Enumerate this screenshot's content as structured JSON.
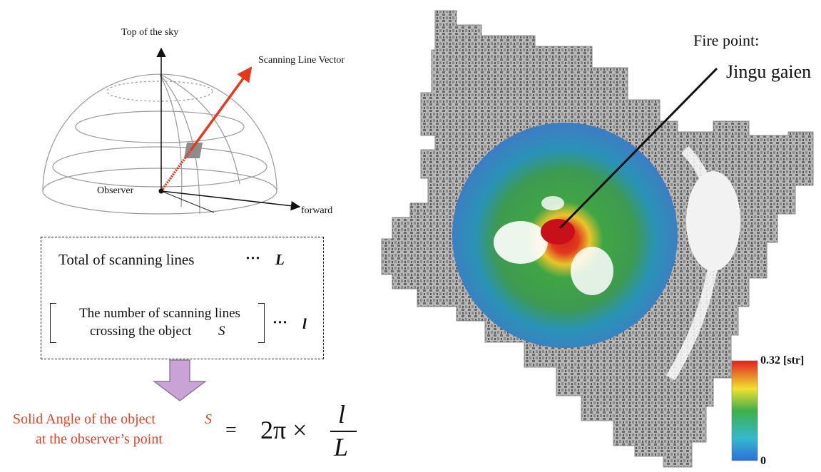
{
  "hemisphere": {
    "top_label": "Top of the sky",
    "vector_label": "Scanning Line Vector",
    "observer_label": "Observer",
    "forward_label": "forward"
  },
  "definition_box": {
    "total_text": "Total of scanning lines",
    "total_symbol": "L",
    "count_line1": "The number of scanning lines",
    "count_line2": "crossing the object",
    "count_object": "S",
    "count_symbol": "l",
    "dots": "···"
  },
  "formula": {
    "lhs_line1": "Solid Angle of the object",
    "lhs_object": "S",
    "lhs_line2": "at the observer’s point",
    "equals": "=",
    "coefficient": "2π ×",
    "numerator": "l",
    "denominator": "L"
  },
  "map": {
    "fire_label": "Fire point:",
    "location": "Jingu gaien",
    "colorbar_max": "0.32 [str]",
    "colorbar_min": "0"
  },
  "colors": {
    "vector": "#e8381c",
    "formula_text": "#e0452a",
    "arrow_fill": "#c9a3d6"
  }
}
